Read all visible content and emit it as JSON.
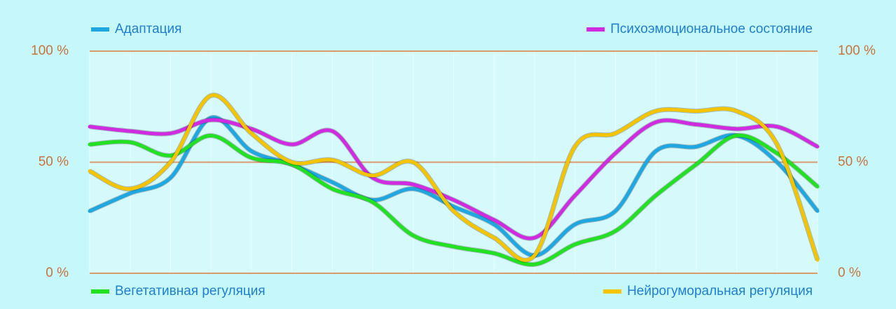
{
  "chart_data": {
    "type": "line",
    "categories": [
      null,
      null,
      null,
      null,
      null,
      null,
      null,
      null,
      null,
      null,
      null,
      null,
      null,
      null,
      null,
      null,
      null,
      null,
      null
    ],
    "series": [
      {
        "name": "Адаптация",
        "color": "#1ea7e1",
        "values": [
          28,
          36,
          43,
          70,
          55,
          49,
          41,
          33,
          38,
          30,
          22,
          8,
          22,
          28,
          55,
          57,
          62,
          50,
          28
        ]
      },
      {
        "name": "Психоэмоциональное состояние",
        "color": "#d02be0",
        "values": [
          66,
          64,
          63,
          69,
          65,
          58,
          64,
          43,
          40,
          33,
          24,
          16,
          35,
          54,
          68,
          67,
          65,
          66,
          57
        ]
      },
      {
        "name": "Вегетативная регуляция",
        "color": "#22e022",
        "values": [
          58,
          59,
          53,
          62,
          52,
          49,
          38,
          32,
          17,
          12,
          9,
          4,
          13,
          19,
          35,
          49,
          62,
          54,
          39
        ]
      },
      {
        "name": "Нейрогуморальная регуляция",
        "color": "#f5c400",
        "values": [
          46,
          38,
          50,
          80,
          63,
          50,
          51,
          44,
          50,
          28,
          16,
          8,
          57,
          63,
          73,
          73,
          73,
          58,
          6
        ]
      }
    ],
    "ylim": [
      0,
      100
    ],
    "yticks": [
      {
        "value": 0,
        "label": "0 %"
      },
      {
        "value": 50,
        "label": "50 %"
      },
      {
        "value": 100,
        "label": "100 %"
      }
    ],
    "y2lim": [
      0,
      100
    ],
    "y2ticks": [
      {
        "value": 0,
        "label": "0 %"
      },
      {
        "value": 50,
        "label": "50 %"
      },
      {
        "value": 100,
        "label": "100 %"
      }
    ],
    "grid": true
  }
}
